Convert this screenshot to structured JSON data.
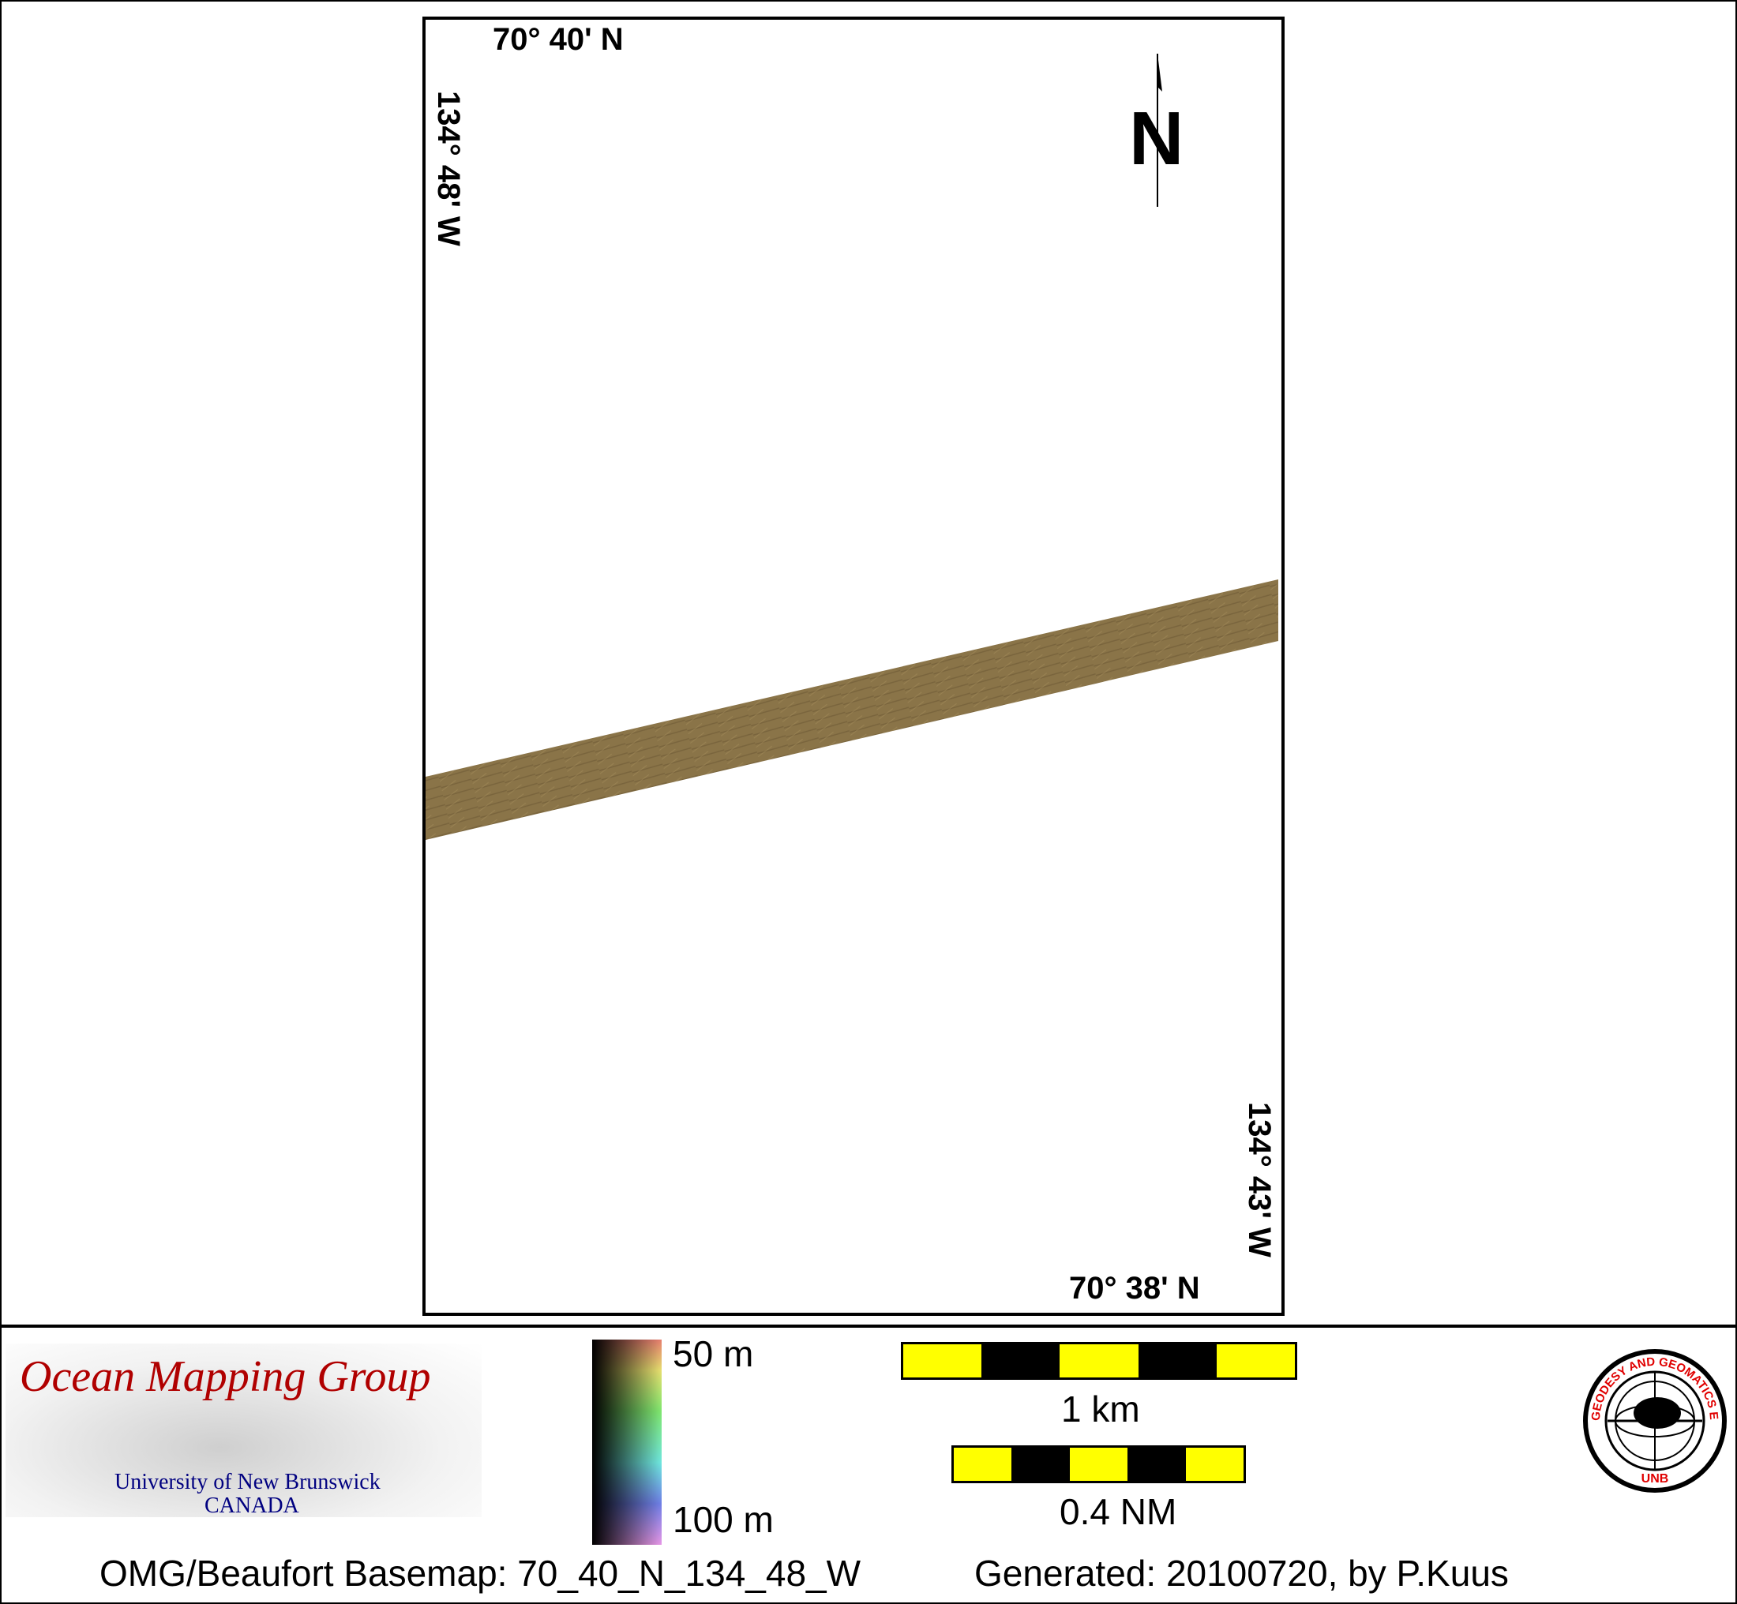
{
  "map": {
    "top_left_lat": "70° 40' N",
    "left_lon": "134° 48' W",
    "right_lon": "134° 43' W",
    "bottom_right_lat": "70° 38' N",
    "north_label": "N",
    "swath_color": "#8a7448"
  },
  "legend": {
    "logo_title": "Ocean Mapping Group",
    "logo_line1": "University of New Brunswick",
    "logo_line2": "CANADA",
    "depth_min": "50 m",
    "depth_max": "100 m",
    "scale_km": "1 km",
    "scale_nm": "0.4 NM",
    "seal_text": "GEODESY AND GEOMATICS ENGINEERING",
    "seal_bottom": "UNB",
    "basemap": "OMG/Beaufort Basemap: 70_40_N_134_48_W",
    "generated": "Generated: 20100720, by P.Kuus"
  },
  "colors": {
    "scale_yellow": "#ffff00",
    "logo_red": "#b00000",
    "logo_blue": "#000080",
    "seal_red": "#e00000"
  }
}
